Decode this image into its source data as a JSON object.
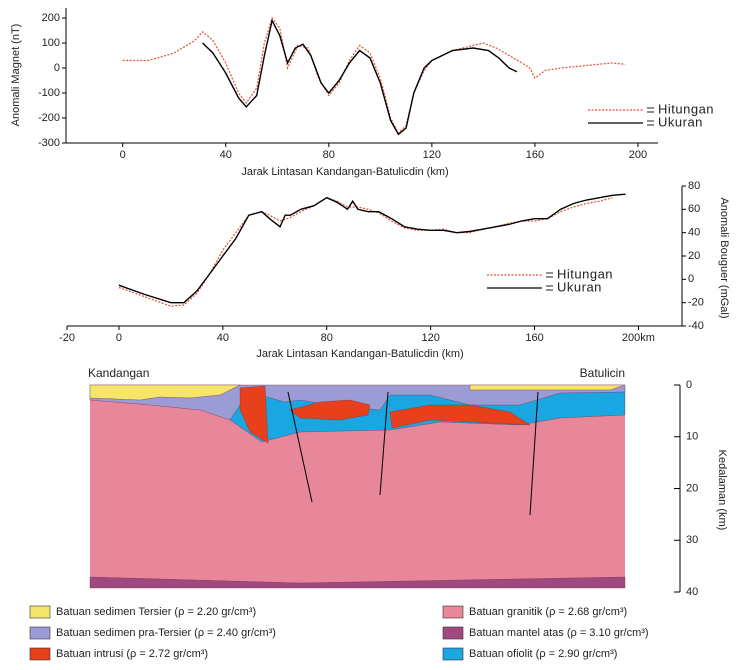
{
  "chart_data": [
    {
      "type": "line",
      "y_label": "Anomali Magnet (nT)",
      "x_label": "Jarak Lintasan Kandangan-Batulicdin (km)",
      "xlim": [
        -22,
        207
      ],
      "ylim": [
        -300,
        240
      ],
      "xticks": [
        0,
        40,
        80,
        120,
        160,
        200
      ],
      "yticks": [
        -300,
        -200,
        -100,
        0,
        100,
        200
      ],
      "series": [
        {
          "name": "Hitungan",
          "color": "#e0503a",
          "dotted": true,
          "x": [
            0,
            10,
            20,
            28,
            31,
            35,
            40,
            45,
            48,
            52,
            55,
            58,
            61,
            64,
            68,
            72,
            76,
            80,
            84,
            88,
            92,
            96,
            100,
            104,
            107,
            110,
            113,
            117,
            120,
            128,
            136,
            140,
            145,
            150,
            155,
            158,
            160,
            164,
            170,
            180,
            190,
            195
          ],
          "values": [
            30,
            30,
            60,
            110,
            145,
            110,
            20,
            -100,
            -140,
            -80,
            100,
            200,
            160,
            0,
            90,
            80,
            -40,
            -110,
            -60,
            30,
            90,
            60,
            -40,
            -200,
            -260,
            -230,
            -100,
            -10,
            30,
            70,
            90,
            100,
            80,
            50,
            20,
            0,
            -40,
            -10,
            0,
            10,
            20,
            15
          ]
        },
        {
          "name": "Ukuran",
          "color": "#000000",
          "dotted": false,
          "x": [
            31,
            35,
            40,
            45,
            48,
            52,
            55,
            58,
            61,
            64,
            67,
            70,
            73,
            77,
            80,
            84,
            88,
            92,
            96,
            100,
            104,
            107,
            110,
            113,
            117,
            120,
            128,
            136,
            142,
            146,
            150,
            153
          ],
          "values": [
            100,
            60,
            -20,
            -120,
            -155,
            -110,
            50,
            190,
            130,
            20,
            80,
            95,
            50,
            -60,
            -100,
            -50,
            20,
            70,
            40,
            -60,
            -210,
            -265,
            -240,
            -100,
            0,
            30,
            70,
            80,
            70,
            40,
            0,
            -15
          ]
        }
      ]
    },
    {
      "type": "line",
      "y_label": "Anomali Bouguer (mGal)",
      "x_label": "Jarak Lintasan Kandangan-Batulicdin (km)",
      "xlim": [
        -20,
        216
      ],
      "ylim": [
        -40,
        80
      ],
      "xticks": [
        -20,
        0,
        40,
        80,
        120,
        160,
        {
          "value": 200,
          "label": "200km"
        }
      ],
      "yticks": [
        -40,
        -20,
        0,
        20,
        40,
        60,
        80
      ],
      "series": [
        {
          "name": "Hitungan",
          "color": "#e0503a",
          "dotted": true,
          "x": [
            0,
            10,
            20,
            25,
            30,
            35,
            40,
            45,
            50,
            55,
            58,
            62,
            66,
            70,
            75,
            80,
            84,
            88,
            92,
            96,
            100,
            105,
            110,
            115,
            120,
            125,
            130,
            135,
            140,
            145,
            150,
            155,
            160,
            165,
            170,
            175,
            180,
            185,
            190
          ],
          "values": [
            -7,
            -15,
            -23,
            -22,
            -12,
            5,
            25,
            40,
            55,
            58,
            55,
            50,
            53,
            58,
            63,
            70,
            67,
            62,
            62,
            60,
            57,
            50,
            44,
            42,
            42,
            43,
            40,
            40,
            43,
            45,
            48,
            50,
            50,
            52,
            58,
            62,
            65,
            67,
            70
          ]
        },
        {
          "name": "Ukuran",
          "color": "#000000",
          "dotted": false,
          "x": [
            0,
            10,
            20,
            25,
            30,
            35,
            40,
            45,
            50,
            55,
            58,
            62,
            64,
            66,
            70,
            75,
            80,
            84,
            88,
            90,
            92,
            96,
            100,
            105,
            110,
            115,
            120,
            125,
            130,
            135,
            140,
            145,
            150,
            155,
            160,
            165,
            170,
            175,
            180,
            185,
            190,
            195
          ],
          "values": [
            -5,
            -13,
            -20,
            -20,
            -10,
            5,
            20,
            35,
            55,
            58,
            52,
            45,
            55,
            55,
            60,
            63,
            70,
            66,
            60,
            67,
            60,
            58,
            58,
            52,
            45,
            43,
            42,
            42,
            40,
            41,
            43,
            45,
            47,
            50,
            52,
            52,
            60,
            65,
            68,
            70,
            72,
            73
          ]
        }
      ]
    }
  ],
  "cross_section": {
    "left_label": "Kandangan",
    "right_label": "Batulicin",
    "depth_label": "Kedalaman (km)",
    "ylim": [
      0,
      40
    ],
    "yticks": [
      0,
      10,
      20,
      30,
      40
    ],
    "legend": [
      {
        "label": "Batuan sedimen Tersier (ρ = 2.20 gr/cm³)",
        "color": "#f5e56b"
      },
      {
        "label": "Batuan sedimen pra-Tersier (ρ = 2.40 gr/cm³)",
        "color": "#9b9bd6"
      },
      {
        "label": "Batuan intrusi (ρ = 2.72 gr/cm³)",
        "color": "#e8401a"
      },
      {
        "label": "Batuan granitik (ρ = 2.68 gr/cm³)",
        "color": "#e8879a"
      },
      {
        "label": "Batuan mantel atas (ρ = 3.10 gr/cm³)",
        "color": "#a04880"
      },
      {
        "label": "Batuan ofiolit (ρ = 2.90 gr/cm³)",
        "color": "#1aa6e0"
      }
    ]
  }
}
